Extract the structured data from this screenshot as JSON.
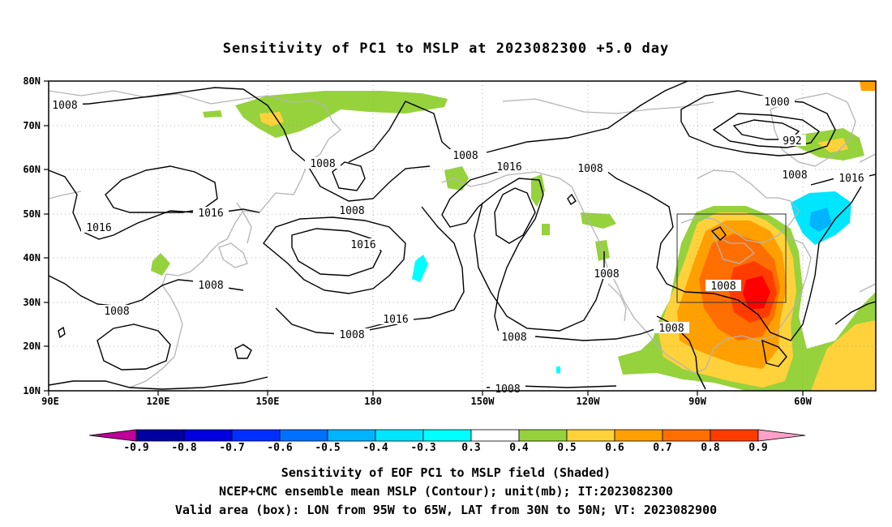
{
  "title": "Sensitivity of PC1 to MSLP at 2023082300 +5.0 day",
  "lat_labels": [
    "80N",
    "70N",
    "60N",
    "50N",
    "40N",
    "30N",
    "20N",
    "10N"
  ],
  "lon_labels": [
    "90E",
    "120E",
    "150E",
    "180",
    "150W",
    "120W",
    "90W",
    "60W"
  ],
  "contour_labels": [
    "1008",
    "1000",
    "992",
    "1008",
    "1016",
    "1008",
    "1016",
    "1008",
    "1016",
    "1008",
    "1016",
    "1016",
    "1016",
    "1008",
    "1008",
    "1008",
    "1008",
    "1008"
  ],
  "valid_box": {
    "lon_from": "95W",
    "lon_to": "65W",
    "lat_from": "30N",
    "lat_to": "50N"
  },
  "colorbar": {
    "labels": [
      "-0.9",
      "-0.8",
      "-0.7",
      "-0.6",
      "-0.5",
      "-0.4",
      "-0.3",
      "0.3",
      "0.4",
      "0.5",
      "0.6",
      "0.7",
      "0.8",
      "0.9"
    ],
    "colors": [
      "#0000a0",
      "#0000e0",
      "#0030ff",
      "#0070ff",
      "#00b4ff",
      "#00e6ff",
      "#00ffff",
      "#ffffff",
      "#96d23c",
      "#ffd23c",
      "#ffa000",
      "#ff6e00",
      "#ff3c00",
      "#ff0000",
      "#ff0000"
    ],
    "low_tip_color": "#c00099",
    "high_tip_color": "#ffa0c8"
  },
  "captions": {
    "line1": "Sensitivity of EOF PC1 to MSLP field (Shaded)",
    "line2": "NCEP+CMC ensemble mean MSLP (Contour); unit(mb); IT:2023082300",
    "line3": "Valid area (box): LON from 95W to 65W, LAT from 30N to 50N; VT: 2023082900"
  }
}
